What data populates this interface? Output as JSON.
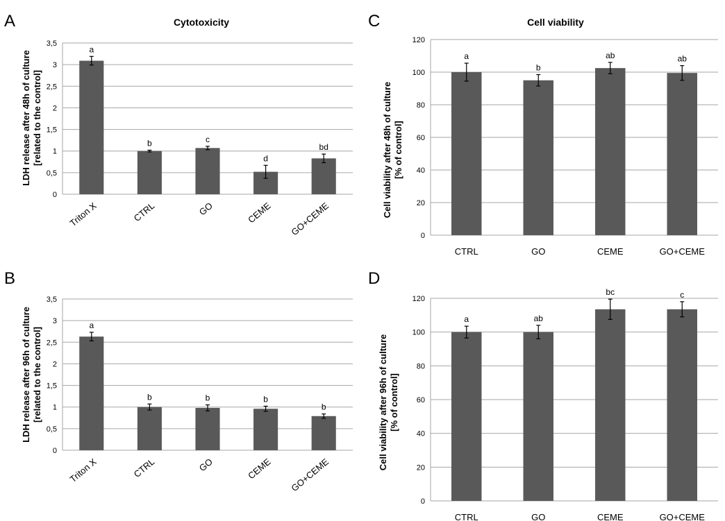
{
  "chart_data": [
    {
      "panel": "A",
      "type": "bar",
      "title": "Cytotoxicity",
      "ylabel": [
        "LDH release after 48h of culture",
        "[related to the control]"
      ],
      "categories": [
        "Triton X",
        "CTRL",
        "GO",
        "CEME",
        "GO+CEME"
      ],
      "values": [
        3.09,
        1.0,
        1.07,
        0.52,
        0.83
      ],
      "errors": [
        0.1,
        0.02,
        0.04,
        0.15,
        0.1
      ],
      "significance": [
        "a",
        "b",
        "c",
        "d",
        "bd"
      ],
      "ylim": [
        0,
        3.5
      ],
      "yticks": [
        "0",
        "0,5",
        "1",
        "1,5",
        "2",
        "2,5",
        "3",
        "3,5"
      ],
      "grid": true,
      "rotated_labels": true
    },
    {
      "panel": "B",
      "type": "bar",
      "title": "",
      "ylabel": [
        "LDH release after 96h of culture",
        "[related to the control]"
      ],
      "categories": [
        "Triton X",
        "CTRL",
        "GO",
        "CEME",
        "GO+CEME"
      ],
      "values": [
        2.63,
        1.0,
        0.98,
        0.96,
        0.79
      ],
      "errors": [
        0.1,
        0.07,
        0.07,
        0.06,
        0.05
      ],
      "significance": [
        "a",
        "b",
        "b",
        "b",
        "b"
      ],
      "ylim": [
        0,
        3.5
      ],
      "yticks": [
        "0",
        "0,5",
        "1",
        "1,5",
        "2",
        "2,5",
        "3",
        "3,5"
      ],
      "grid": true,
      "rotated_labels": true
    },
    {
      "panel": "C",
      "type": "bar",
      "title": "Cell viability",
      "ylabel": [
        "Cell viability after 48h of culture",
        "[% of control]"
      ],
      "categories": [
        "CTRL",
        "GO",
        "CEME",
        "GO+CEME"
      ],
      "values": [
        100,
        95,
        102.5,
        99.5
      ],
      "errors": [
        5.5,
        3.5,
        3.5,
        4.5
      ],
      "significance": [
        "a",
        "b",
        "ab",
        "ab"
      ],
      "ylim": [
        0,
        120
      ],
      "yticks": [
        "0",
        "20",
        "40",
        "60",
        "80",
        "100",
        "120"
      ],
      "grid": true,
      "rotated_labels": false
    },
    {
      "panel": "D",
      "type": "bar",
      "title": "",
      "ylabel": [
        "Cell viability after 96h of culture",
        "[% of control]"
      ],
      "categories": [
        "CTRL",
        "GO",
        "CEME",
        "GO+CEME"
      ],
      "values": [
        100,
        100,
        113.5,
        113.5
      ],
      "errors": [
        3.5,
        4,
        6,
        4.5
      ],
      "significance": [
        "a",
        "ab",
        "bc",
        "c"
      ],
      "ylim": [
        0,
        120
      ],
      "yticks": [
        "0",
        "20",
        "40",
        "60",
        "80",
        "100",
        "120"
      ],
      "grid": true,
      "rotated_labels": false
    }
  ]
}
